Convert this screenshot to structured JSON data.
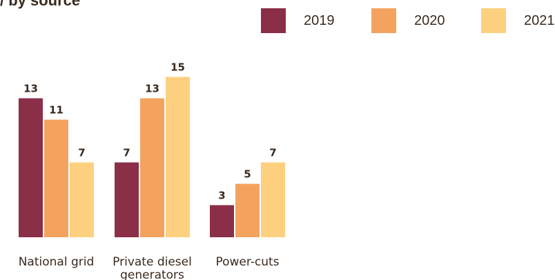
{
  "title_visible": "/ by source",
  "colors": {
    "2019": "#8b2e47",
    "2020": "#f4a35f",
    "2021": "#fdd07f",
    "text": "#3a2a1e"
  },
  "chart_data": {
    "type": "bar",
    "title": "/ by source",
    "categories": [
      "National grid",
      "Private diesel generators",
      "Power-cuts"
    ],
    "category_lines": [
      [
        "National grid"
      ],
      [
        "Private diesel",
        "generators"
      ],
      [
        "Power-cuts"
      ]
    ],
    "series": [
      {
        "name": "2019",
        "values": [
          13,
          7,
          3
        ]
      },
      {
        "name": "2020",
        "values": [
          11,
          13,
          5
        ]
      },
      {
        "name": "2021",
        "values": [
          7,
          15,
          7
        ]
      }
    ],
    "ylim": [
      0,
      15
    ],
    "grid": false,
    "legend": "top-right",
    "data_labels": true
  }
}
